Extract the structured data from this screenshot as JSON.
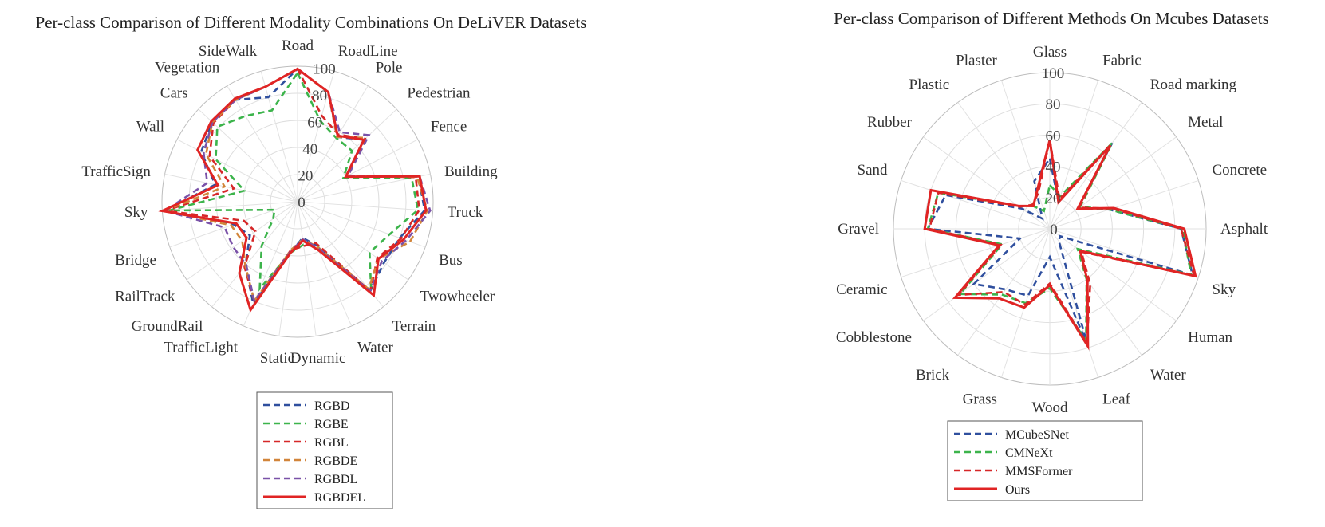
{
  "chart_data": [
    {
      "type": "radar",
      "title": "Per-class Comparison of Different Modality Combinations On DeLiVER Datasets",
      "rlim": [
        0,
        100
      ],
      "r_ticks": [
        "0",
        "20",
        "40",
        "60",
        "80",
        "100"
      ],
      "grid": true,
      "legend_position": "bottom",
      "categories": [
        "Road",
        "RoadLine",
        "Pole",
        "Pedestrian",
        "Fence",
        "Building",
        "Truck",
        "Bus",
        "Twowheeler",
        "Terrain",
        "Water",
        "Dynamic",
        "Static",
        "TrafficLight",
        "GroundRail",
        "RailTrack",
        "Bridge",
        "Sky",
        "TrafficSign",
        "Wall",
        "Cars",
        "Vegetation",
        "SideWalk"
      ],
      "series": [
        {
          "name": "RGBD",
          "style": "dashed",
          "color": "#2f4f9e",
          "values": [
            98,
            84,
            56,
            67,
            40,
            91,
            94,
            80,
            78,
            85,
            35,
            27,
            38,
            82,
            61,
            43,
            50,
            98,
            62,
            80,
            86,
            88,
            80
          ]
        },
        {
          "name": "RGBE",
          "style": "dashed",
          "color": "#3cb44b",
          "values": [
            95,
            62,
            55,
            55,
            38,
            86,
            89,
            72,
            65,
            86,
            36,
            32,
            38,
            70,
            42,
            22,
            18,
            95,
            40,
            68,
            81,
            74,
            70
          ]
        },
        {
          "name": "RGBL",
          "style": "dashed",
          "color": "#d62728",
          "values": [
            98,
            66,
            58,
            68,
            41,
            89,
            90,
            81,
            72,
            85,
            33,
            33,
            36,
            80,
            62,
            38,
            42,
            98,
            48,
            73,
            85,
            88,
            88
          ]
        },
        {
          "name": "RGBDE",
          "style": "dashed",
          "color": "#d2853a",
          "values": [
            98,
            84,
            56,
            69,
            41,
            90,
            96,
            88,
            73,
            83,
            36,
            28,
            36,
            80,
            61,
            50,
            52,
            98,
            55,
            76,
            86,
            88,
            88
          ]
        },
        {
          "name": "RGBDL",
          "style": "dashed",
          "color": "#7a52a8",
          "values": [
            98,
            84,
            60,
            72,
            42,
            92,
            98,
            85,
            76,
            85,
            37,
            28,
            37,
            80,
            60,
            58,
            57,
            98,
            68,
            78,
            86,
            88,
            88
          ]
        },
        {
          "name": "RGBDEL",
          "style": "solid",
          "color": "#e02424",
          "values": [
            98,
            84,
            57,
            67,
            40,
            92,
            95,
            83,
            73,
            89,
            39,
            29,
            38,
            87,
            68,
            46,
            48,
            100,
            60,
            83,
            87,
            89,
            88
          ]
        }
      ]
    },
    {
      "type": "radar",
      "title": "Per-class Comparison of Different Methods On Mcubes Datasets",
      "rlim": [
        0,
        100
      ],
      "r_ticks": [
        "0",
        "20",
        "40",
        "60",
        "80",
        "100"
      ],
      "grid": true,
      "legend_position": "bottom",
      "categories": [
        "Glass",
        "Fabric",
        "Road marking",
        "Metal",
        "Concrete",
        "Asphalt",
        "Sky",
        "Human",
        "Water",
        "Leaf",
        "Wood",
        "Grass",
        "Brick",
        "Cobblestone",
        "Ceramic",
        "Gravel",
        "Sand",
        "Rubber",
        "Plastic",
        "Plaster"
      ],
      "series": [
        {
          "name": "MCubeSNet",
          "style": "dashed",
          "color": "#2f4f9e",
          "values": [
            45,
            18,
            68,
            22,
            40,
            84,
            96,
            8,
            10,
            78,
            18,
            45,
            48,
            60,
            20,
            78,
            70,
            22,
            8,
            32
          ]
        },
        {
          "name": "CMNeXt",
          "style": "dashed",
          "color": "#3cb44b",
          "values": [
            28,
            22,
            68,
            24,
            40,
            85,
            95,
            22,
            40,
            75,
            38,
            50,
            52,
            71,
            32,
            78,
            75,
            25,
            18,
            12
          ]
        },
        {
          "name": "MMSFormer",
          "style": "dashed",
          "color": "#d62728",
          "values": [
            57,
            20,
            66,
            23,
            42,
            84,
            97,
            25,
            44,
            77,
            35,
            51,
            50,
            72,
            33,
            77,
            75,
            24,
            19,
            24
          ]
        },
        {
          "name": "Ours",
          "style": "solid",
          "color": "#e02424",
          "values": [
            57,
            18,
            66,
            22,
            43,
            86,
            98,
            24,
            41,
            79,
            36,
            53,
            55,
            75,
            34,
            80,
            80,
            25,
            18,
            26
          ]
        }
      ]
    }
  ]
}
